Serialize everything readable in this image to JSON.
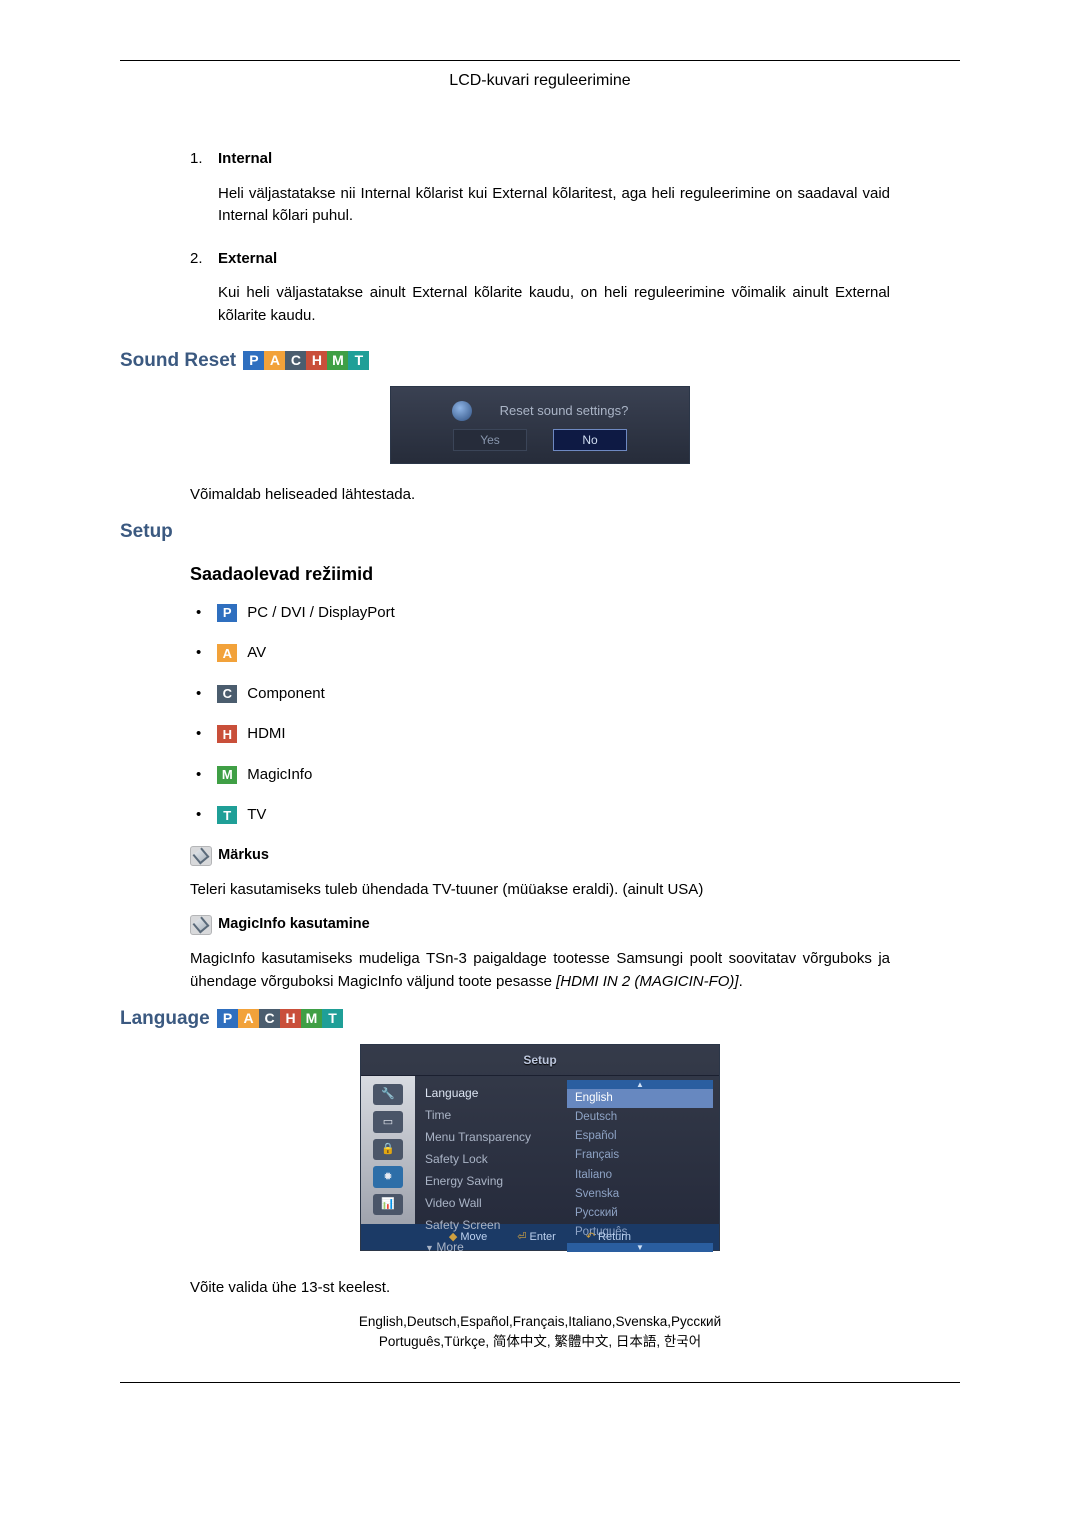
{
  "header": {
    "title": "LCD-kuvari reguleerimine"
  },
  "items": [
    {
      "num": "1.",
      "label": "Internal",
      "body": "Heli väljastatakse nii Internal kõlarist kui External kõlaritest, aga heli reguleerimine on saadaval vaid Internal kõlari puhul."
    },
    {
      "num": "2.",
      "label": "External",
      "body": "Kui heli väljastatakse ainult External kõlarite kaudu, on heli reguleerimine võimalik ainult External kõlarite kaudu."
    }
  ],
  "badges": {
    "P": {
      "bg": "#2f6fbf",
      "t": "P"
    },
    "A": {
      "bg": "#f2a23a",
      "t": "A"
    },
    "C": {
      "bg": "#4b5d6e",
      "t": "C"
    },
    "H": {
      "bg": "#c94f3a",
      "t": "H"
    },
    "M": {
      "bg": "#3f9f45",
      "t": "M"
    },
    "T": {
      "bg": "#1f9f97",
      "t": "T"
    }
  },
  "sound_reset": {
    "heading": "Sound Reset",
    "dialog_text": "Reset sound settings?",
    "yes": "Yes",
    "no": "No",
    "desc": "Võimaldab heliseaded lähtestada."
  },
  "setup": {
    "heading": "Setup",
    "sub": "Saadaolevad režiimid",
    "modes": [
      {
        "badge": "P",
        "label": "PC / DVI / DisplayPort"
      },
      {
        "badge": "A",
        "label": "AV"
      },
      {
        "badge": "C",
        "label": "Component"
      },
      {
        "badge": "H",
        "label": "HDMI"
      },
      {
        "badge": "M",
        "label": "MagicInfo"
      },
      {
        "badge": "T",
        "label": "TV"
      }
    ],
    "note1_label": "Märkus",
    "note1_body": "Teleri kasutamiseks tuleb ühendada TV-tuuner (müüakse eraldi). (ainult USA)",
    "note2_label": "MagicInfo kasutamine",
    "note2_body_a": "MagicInfo kasutamiseks mudeliga TSn-3 paigaldage tootesse Samsungi poolt soovitatav võrguboks ja ühendage võrguboksi MagicInfo väljund toote pesasse ",
    "note2_body_b": "[HDMI IN 2 (MAGICIN-FO)]"
  },
  "language": {
    "heading": "Language",
    "osd_title": "Setup",
    "menu": [
      "Language",
      "Time",
      "Menu Transparency",
      "Safety Lock",
      "Energy Saving",
      "Video Wall",
      "Safety Screen"
    ],
    "more": "More",
    "options": [
      "English",
      "Deutsch",
      "Español",
      "Français",
      "Italiano",
      "Svenska",
      "Русский",
      "Português"
    ],
    "footer": {
      "move": "Move",
      "enter": "Enter",
      "return": "Return"
    },
    "desc": "Võite valida ühe 13-st keelest.",
    "langs1": "English,Deutsch,Español,Français,Italiano,Svenska,Русский",
    "langs2": "Português,Türkçe, 简体中文,  繁體中文, 日本語, 한국어"
  },
  "colors": {
    "heading": "#3b5980"
  }
}
